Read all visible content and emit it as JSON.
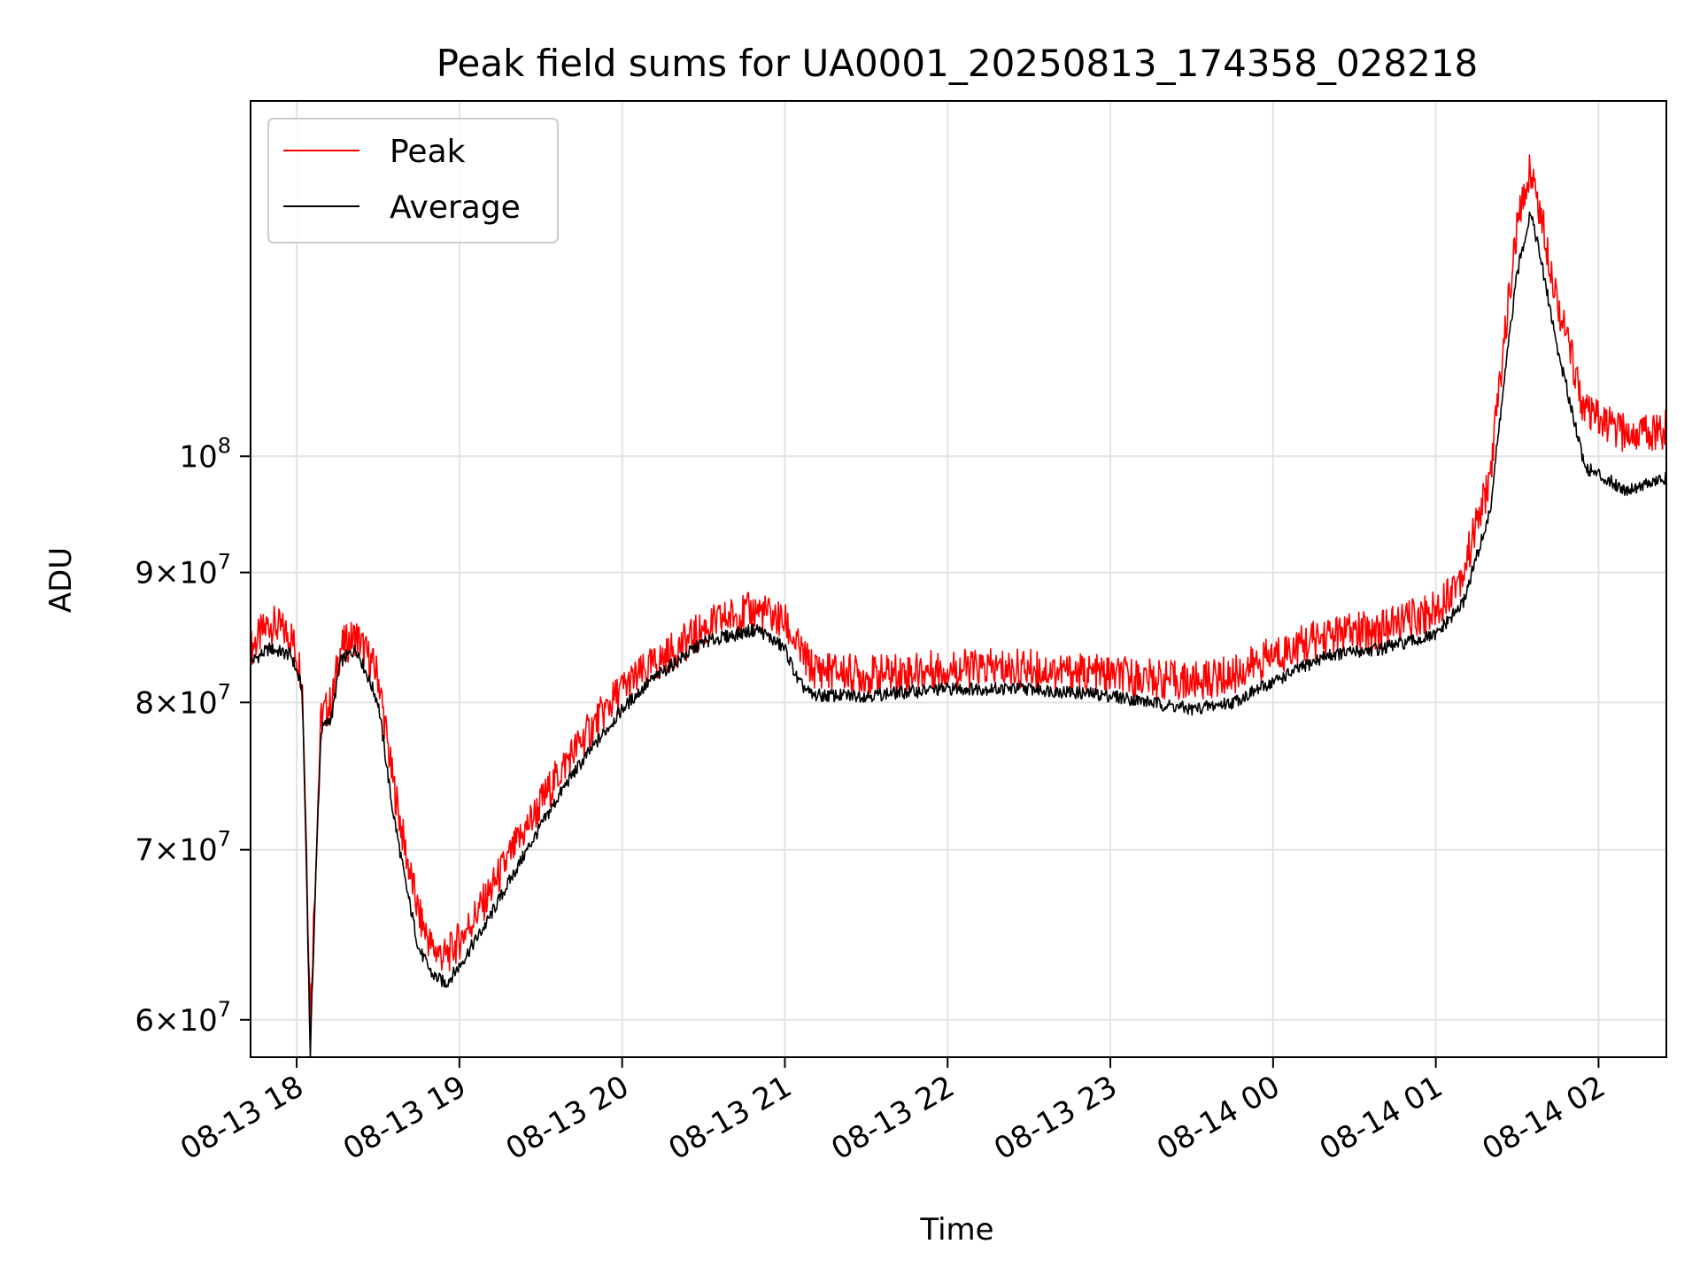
{
  "chart_data": {
    "type": "line",
    "title": "Peak field sums for UA0001_20250813_174358_028218",
    "xlabel": "Time",
    "ylabel": "ADU",
    "y_scale": "log",
    "xlim": [
      "2025-08-13 17:43",
      "2025-08-14 02:25"
    ],
    "ylim": [
      58000000,
      138000000
    ],
    "grid": true,
    "legend_placement": "top-left",
    "x_ticks": [
      {
        "t": "2025-08-13 18:00",
        "label": "08-13 18"
      },
      {
        "t": "2025-08-13 19:00",
        "label": "08-13 19"
      },
      {
        "t": "2025-08-13 20:00",
        "label": "08-13 20"
      },
      {
        "t": "2025-08-13 21:00",
        "label": "08-13 21"
      },
      {
        "t": "2025-08-13 22:00",
        "label": "08-13 22"
      },
      {
        "t": "2025-08-13 23:00",
        "label": "08-13 23"
      },
      {
        "t": "2025-08-14 00:00",
        "label": "08-14 00"
      },
      {
        "t": "2025-08-14 01:00",
        "label": "08-14 01"
      },
      {
        "t": "2025-08-14 02:00",
        "label": "08-14 02"
      }
    ],
    "y_ticks": [
      {
        "v": 60000000,
        "mant": "6",
        "exp": "7"
      },
      {
        "v": 70000000,
        "mant": "7",
        "exp": "7"
      },
      {
        "v": 80000000,
        "mant": "8",
        "exp": "7"
      },
      {
        "v": 90000000,
        "mant": "9",
        "exp": "7"
      },
      {
        "v": 100000000,
        "mant": "",
        "exp": "8"
      }
    ],
    "series": [
      {
        "name": "Peak",
        "color": "#ff0000",
        "points": [
          [
            "2025-08-13 17:43",
            84000000
          ],
          [
            "2025-08-13 17:50",
            86000000
          ],
          [
            "2025-08-13 17:58",
            85000000
          ],
          [
            "2025-08-13 18:02",
            82000000
          ],
          [
            "2025-08-13 18:05",
            60000000
          ],
          [
            "2025-08-13 18:07",
            69000000
          ],
          [
            "2025-08-13 18:09",
            79000000
          ],
          [
            "2025-08-13 18:13",
            80000000
          ],
          [
            "2025-08-13 18:16",
            84000000
          ],
          [
            "2025-08-13 18:22",
            85000000
          ],
          [
            "2025-08-13 18:30",
            82000000
          ],
          [
            "2025-08-13 18:35",
            75000000
          ],
          [
            "2025-08-13 18:40",
            70000000
          ],
          [
            "2025-08-13 18:45",
            66000000
          ],
          [
            "2025-08-13 18:50",
            64000000
          ],
          [
            "2025-08-13 18:55",
            63500000
          ],
          [
            "2025-08-13 19:00",
            64500000
          ],
          [
            "2025-08-13 19:10",
            67000000
          ],
          [
            "2025-08-13 19:20",
            70000000
          ],
          [
            "2025-08-13 19:30",
            73000000
          ],
          [
            "2025-08-13 19:40",
            76000000
          ],
          [
            "2025-08-13 19:50",
            78500000
          ],
          [
            "2025-08-13 20:00",
            81000000
          ],
          [
            "2025-08-13 20:10",
            82500000
          ],
          [
            "2025-08-13 20:20",
            84000000
          ],
          [
            "2025-08-13 20:30",
            85500000
          ],
          [
            "2025-08-13 20:40",
            86500000
          ],
          [
            "2025-08-13 20:50",
            87000000
          ],
          [
            "2025-08-13 21:00",
            86000000
          ],
          [
            "2025-08-13 21:05",
            84000000
          ],
          [
            "2025-08-13 21:10",
            82500000
          ],
          [
            "2025-08-13 21:30",
            82000000
          ],
          [
            "2025-08-13 22:00",
            82500000
          ],
          [
            "2025-08-13 22:30",
            82500000
          ],
          [
            "2025-08-13 23:00",
            82000000
          ],
          [
            "2025-08-13 23:30",
            81500000
          ],
          [
            "2025-08-13 23:45",
            82000000
          ],
          [
            "2025-08-14 00:00",
            83500000
          ],
          [
            "2025-08-14 00:20",
            85000000
          ],
          [
            "2025-08-14 00:40",
            85500000
          ],
          [
            "2025-08-14 01:00",
            87000000
          ],
          [
            "2025-08-14 01:10",
            90000000
          ],
          [
            "2025-08-14 01:20",
            98000000
          ],
          [
            "2025-08-14 01:30",
            123000000
          ],
          [
            "2025-08-14 01:35",
            130000000
          ],
          [
            "2025-08-14 01:45",
            115000000
          ],
          [
            "2025-08-14 01:55",
            104000000
          ],
          [
            "2025-08-14 02:10",
            102000000
          ],
          [
            "2025-08-14 02:25",
            102500000
          ]
        ]
      },
      {
        "name": "Average",
        "color": "#000000",
        "points": [
          [
            "2025-08-13 17:43",
            83000000
          ],
          [
            "2025-08-13 17:50",
            84000000
          ],
          [
            "2025-08-13 17:58",
            83500000
          ],
          [
            "2025-08-13 18:02",
            81000000
          ],
          [
            "2025-08-13 18:05",
            58000000
          ],
          [
            "2025-08-13 18:07",
            68000000
          ],
          [
            "2025-08-13 18:09",
            78000000
          ],
          [
            "2025-08-13 18:13",
            79000000
          ],
          [
            "2025-08-13 18:16",
            83000000
          ],
          [
            "2025-08-13 18:22",
            84000000
          ],
          [
            "2025-08-13 18:30",
            80000000
          ],
          [
            "2025-08-13 18:35",
            73000000
          ],
          [
            "2025-08-13 18:40",
            68000000
          ],
          [
            "2025-08-13 18:45",
            64000000
          ],
          [
            "2025-08-13 18:50",
            62500000
          ],
          [
            "2025-08-13 18:55",
            62000000
          ],
          [
            "2025-08-13 19:00",
            63000000
          ],
          [
            "2025-08-13 19:10",
            65500000
          ],
          [
            "2025-08-13 19:20",
            68500000
          ],
          [
            "2025-08-13 19:30",
            71500000
          ],
          [
            "2025-08-13 19:40",
            74500000
          ],
          [
            "2025-08-13 19:50",
            77000000
          ],
          [
            "2025-08-13 20:00",
            79500000
          ],
          [
            "2025-08-13 20:10",
            81500000
          ],
          [
            "2025-08-13 20:20",
            83000000
          ],
          [
            "2025-08-13 20:30",
            84500000
          ],
          [
            "2025-08-13 20:40",
            85000000
          ],
          [
            "2025-08-13 20:50",
            85500000
          ],
          [
            "2025-08-13 21:00",
            84000000
          ],
          [
            "2025-08-13 21:05",
            81500000
          ],
          [
            "2025-08-13 21:10",
            80500000
          ],
          [
            "2025-08-13 21:30",
            80500000
          ],
          [
            "2025-08-13 22:00",
            81000000
          ],
          [
            "2025-08-13 22:30",
            81000000
          ],
          [
            "2025-08-13 23:00",
            80500000
          ],
          [
            "2025-08-13 23:30",
            79500000
          ],
          [
            "2025-08-13 23:45",
            80000000
          ],
          [
            "2025-08-14 00:00",
            81500000
          ],
          [
            "2025-08-14 00:20",
            83500000
          ],
          [
            "2025-08-14 00:40",
            84000000
          ],
          [
            "2025-08-14 01:00",
            85000000
          ],
          [
            "2025-08-14 01:10",
            87500000
          ],
          [
            "2025-08-14 01:20",
            95000000
          ],
          [
            "2025-08-14 01:30",
            118000000
          ],
          [
            "2025-08-14 01:35",
            125000000
          ],
          [
            "2025-08-14 01:45",
            110000000
          ],
          [
            "2025-08-14 01:55",
            99000000
          ],
          [
            "2025-08-14 02:10",
            97000000
          ],
          [
            "2025-08-14 02:25",
            98000000
          ]
        ]
      }
    ]
  }
}
